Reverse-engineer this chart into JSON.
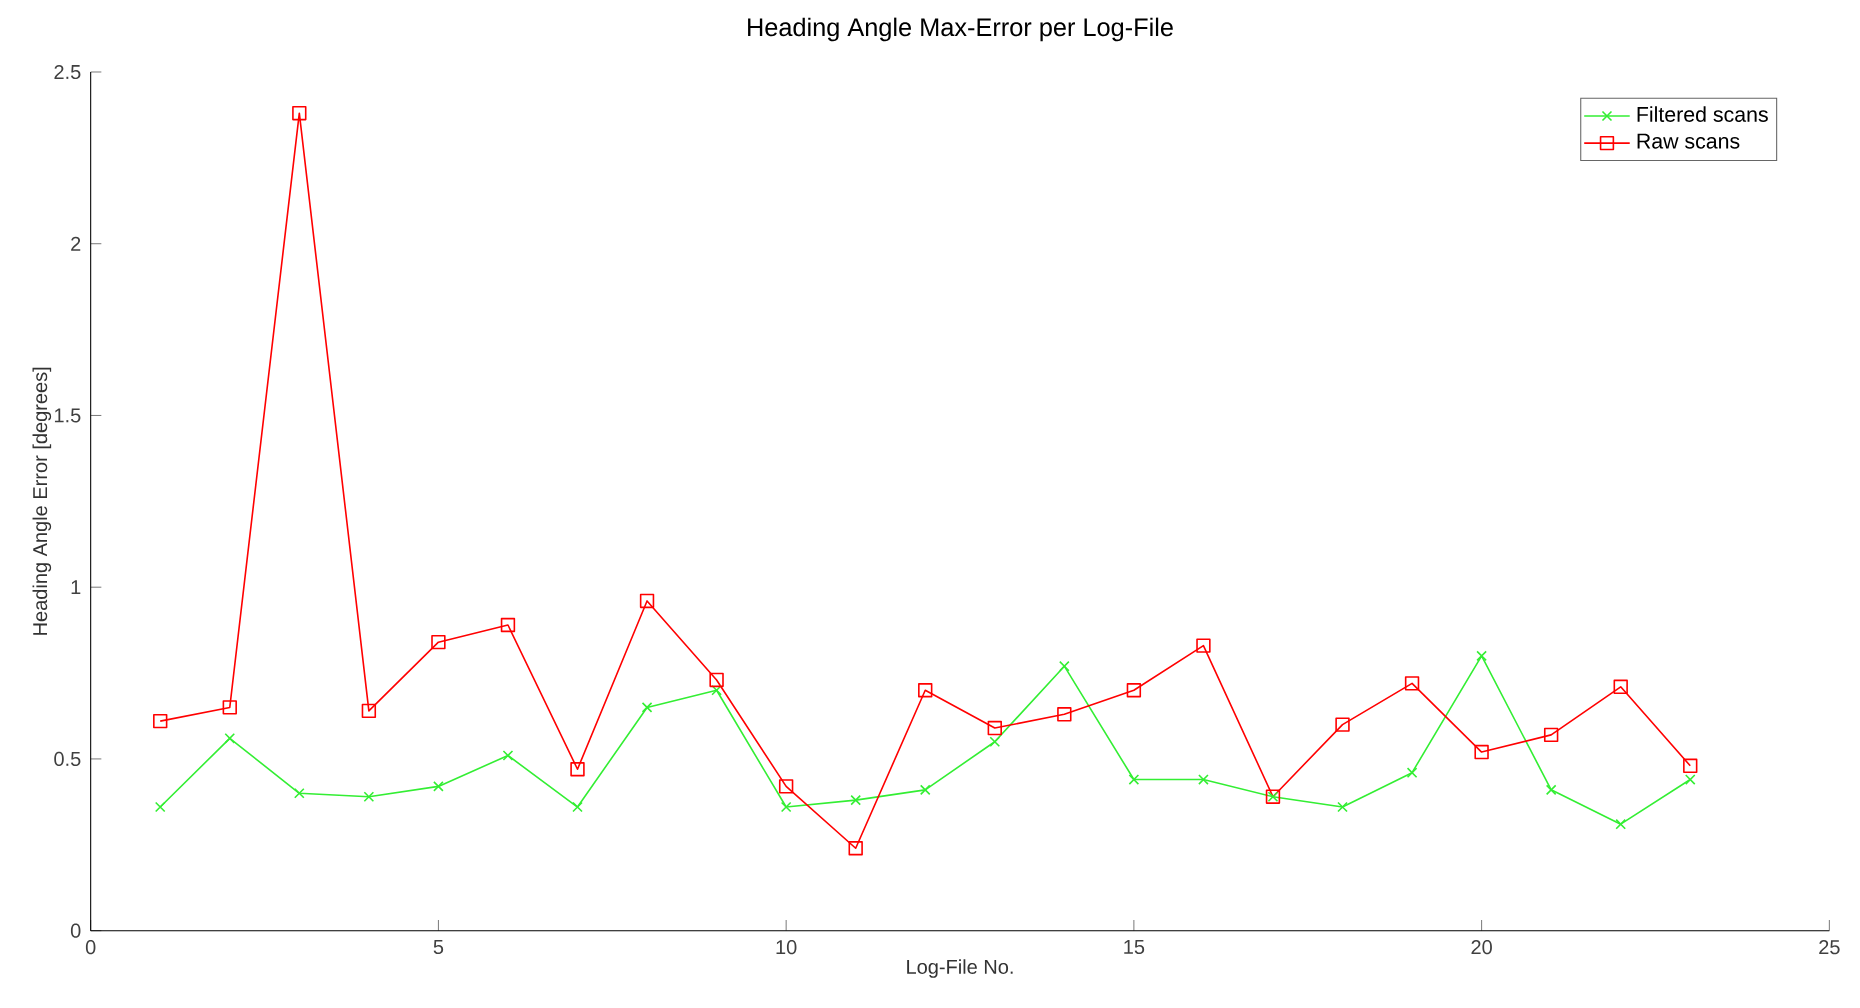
{
  "chart_data": {
    "type": "line",
    "title": "Heading Angle Max-Error per Log-File",
    "xlabel": "Log-File No.",
    "ylabel": "Heading Angle Error [degrees]",
    "x": [
      1,
      2,
      3,
      4,
      5,
      6,
      7,
      8,
      9,
      10,
      11,
      12,
      13,
      14,
      15,
      16,
      17,
      18,
      19,
      20,
      21,
      22,
      23
    ],
    "series": [
      {
        "name": "Filtered scans",
        "color": "#33ee33",
        "marker": "cross",
        "values": [
          0.36,
          0.56,
          0.4,
          0.39,
          0.42,
          0.51,
          0.36,
          0.65,
          0.7,
          0.36,
          0.38,
          0.41,
          0.55,
          0.77,
          0.44,
          0.44,
          0.39,
          0.36,
          0.46,
          0.8,
          0.41,
          0.31,
          0.44
        ]
      },
      {
        "name": "Raw scans",
        "color": "#ff0000",
        "marker": "square",
        "values": [
          0.61,
          0.65,
          2.38,
          0.64,
          0.84,
          0.89,
          0.47,
          0.96,
          0.73,
          0.42,
          0.24,
          0.7,
          0.59,
          0.63,
          0.7,
          0.83,
          0.39,
          0.6,
          0.72,
          0.52,
          0.57,
          0.71,
          0.48
        ]
      }
    ],
    "xlim": [
      0,
      25
    ],
    "xticks": [
      0,
      5,
      10,
      15,
      20,
      25
    ],
    "ylim": [
      0,
      2.5
    ],
    "yticks": [
      0,
      0.5,
      1,
      1.5,
      2,
      2.5
    ],
    "legend": "top right",
    "line_style": "solid",
    "grid": false
  }
}
